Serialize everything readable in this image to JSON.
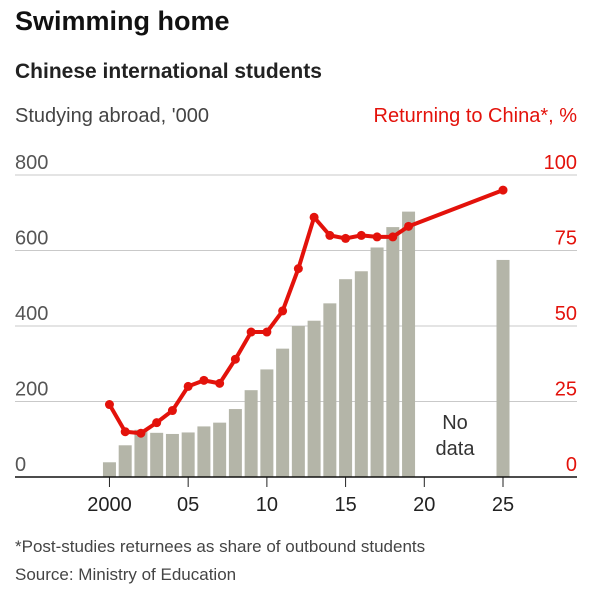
{
  "chart_data": {
    "type": "combo",
    "title": "Swimming home",
    "subtitle": "Chinese international students",
    "y_label": "Studying abroad, '000",
    "y2_label": "Returning to China*, %",
    "x": [
      2000,
      2001,
      2002,
      2003,
      2004,
      2005,
      2006,
      2007,
      2008,
      2009,
      2010,
      2011,
      2012,
      2013,
      2014,
      2015,
      2016,
      2017,
      2018,
      2019,
      2025
    ],
    "series": [
      {
        "name": "Studying abroad",
        "type": "bar",
        "color": "#b4b5a8",
        "axis": "y",
        "values": [
          39,
          84,
          125,
          117,
          114,
          118,
          134,
          144,
          180,
          230,
          285,
          340,
          400,
          414,
          460,
          524,
          545,
          608,
          662,
          703,
          575
        ]
      },
      {
        "name": "Returning to China",
        "type": "line",
        "color": "#e3120b",
        "axis": "y2",
        "values": [
          24,
          15,
          14.5,
          18,
          22,
          30,
          32,
          31,
          39,
          48,
          48,
          55,
          69,
          86,
          80,
          79,
          80,
          79.5,
          79.5,
          83,
          95
        ]
      }
    ],
    "xlim": [
      1994,
      2029.7
    ],
    "xticks": [
      {
        "value": 2000,
        "label": "2000"
      },
      {
        "value": 2005,
        "label": "05"
      },
      {
        "value": 2010,
        "label": "10"
      },
      {
        "value": 2015,
        "label": "15"
      },
      {
        "value": 2020,
        "label": "20"
      },
      {
        "value": 2025,
        "label": "25"
      }
    ],
    "ylim": [
      0,
      800
    ],
    "yticks": [
      0,
      200,
      400,
      600,
      800
    ],
    "y2lim": [
      0,
      100
    ],
    "y2ticks": [
      0,
      25,
      50,
      75,
      100
    ],
    "annotation": "No data",
    "footnote": "*Post-studies returnees as share of outbound students",
    "source": "Source: Ministry of Education",
    "grid": true
  }
}
